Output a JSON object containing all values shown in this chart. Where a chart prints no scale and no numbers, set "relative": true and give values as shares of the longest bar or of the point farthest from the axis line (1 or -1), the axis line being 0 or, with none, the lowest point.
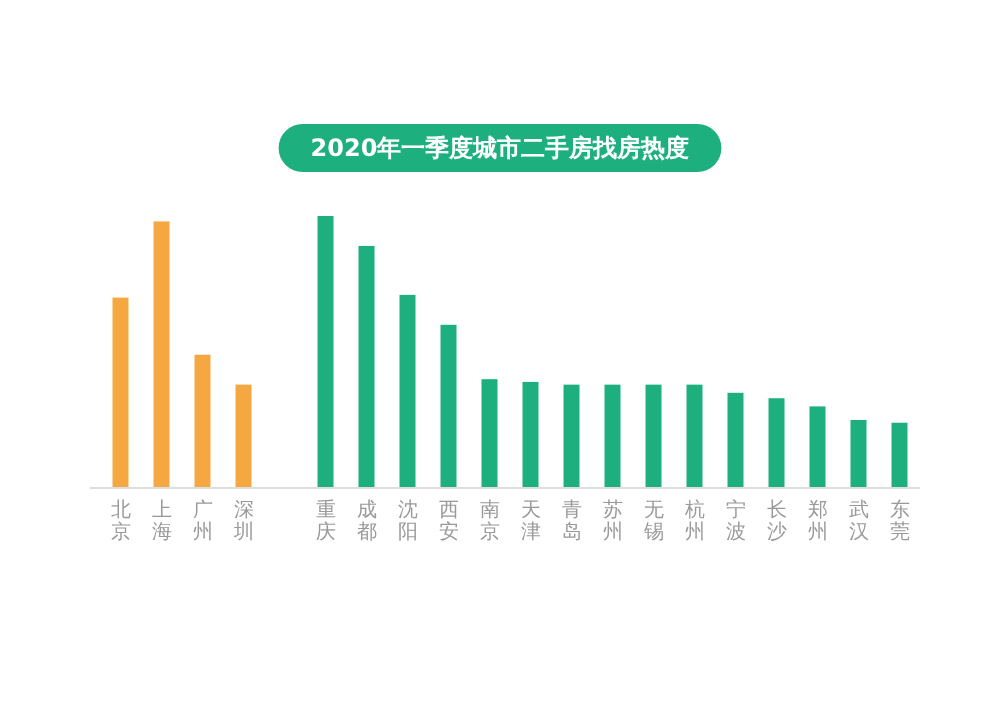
{
  "chart_data": {
    "type": "bar",
    "title": "2020年一季度城市二手房找房热度",
    "relative": true,
    "categories": [
      "北京",
      "上海",
      "广州",
      "深圳",
      null,
      "重庆",
      "成都",
      "沈阳",
      "西安",
      "南京",
      "天津",
      "青岛",
      "苏州",
      "无锡",
      "杭州",
      "宁波",
      "长沙",
      "郑州",
      "武汉",
      "东莞"
    ],
    "values": [
      0.7,
      0.98,
      0.49,
      0.38,
      null,
      1,
      0.89,
      0.71,
      0.6,
      0.4,
      0.39,
      0.38,
      0.38,
      0.38,
      0.38,
      0.35,
      0.33,
      0.3,
      0.25,
      0.24
    ],
    "colors": [
      "#f5a742",
      "#f5a742",
      "#f5a742",
      "#f5a742",
      null,
      "#1db07e",
      "#1db07e",
      "#1db07e",
      "#1db07e",
      "#1db07e",
      "#1db07e",
      "#1db07e",
      "#1db07e",
      "#1db07e",
      "#1db07e",
      "#1db07e",
      "#1db07e",
      "#1db07e",
      "#1db07e",
      "#1db07e"
    ],
    "grid": false
  }
}
